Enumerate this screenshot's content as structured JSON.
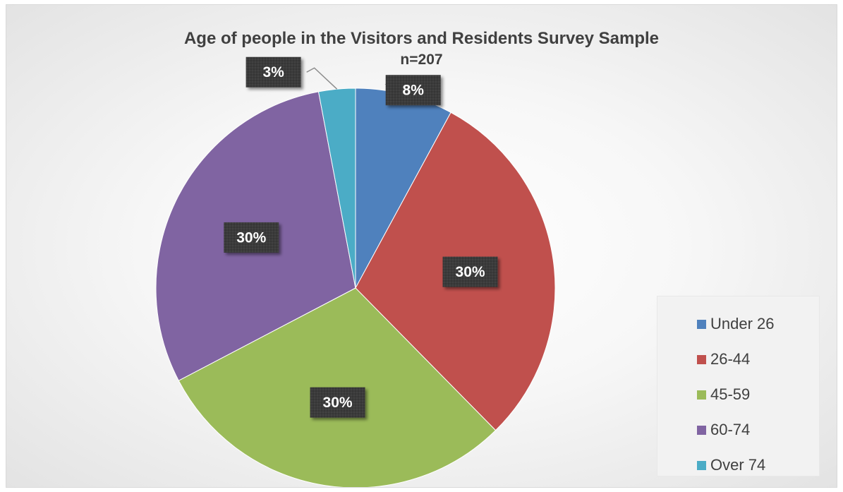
{
  "chart_data": {
    "type": "pie",
    "title": "Age of people in the Visitors and Residents Survey Sample",
    "subtitle": "n=207",
    "categories": [
      "Under 26",
      "26-44",
      "45-59",
      "60-74",
      "Over 74"
    ],
    "values": [
      8,
      30,
      30,
      30,
      3
    ],
    "data_labels": [
      "8%",
      "30%",
      "30%",
      "30%",
      "3%"
    ],
    "colors": [
      "#4f81bd",
      "#c0504d",
      "#9bbb59",
      "#8064a2",
      "#4bacc6"
    ],
    "legend": "right",
    "start_angle_deg": 0,
    "direction": "clockwise"
  }
}
